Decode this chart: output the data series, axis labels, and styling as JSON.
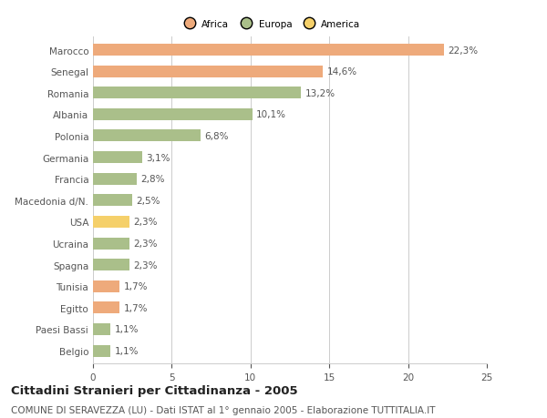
{
  "countries": [
    "Marocco",
    "Senegal",
    "Romania",
    "Albania",
    "Polonia",
    "Germania",
    "Francia",
    "Macedonia d/N.",
    "USA",
    "Ucraina",
    "Spagna",
    "Tunisia",
    "Egitto",
    "Paesi Bassi",
    "Belgio"
  ],
  "values": [
    22.3,
    14.6,
    13.2,
    10.1,
    6.8,
    3.1,
    2.8,
    2.5,
    2.3,
    2.3,
    2.3,
    1.7,
    1.7,
    1.1,
    1.1
  ],
  "labels": [
    "22,3%",
    "14,6%",
    "13,2%",
    "10,1%",
    "6,8%",
    "3,1%",
    "2,8%",
    "2,5%",
    "2,3%",
    "2,3%",
    "2,3%",
    "1,7%",
    "1,7%",
    "1,1%",
    "1,1%"
  ],
  "colors": [
    "#EEAA7B",
    "#EEAA7B",
    "#AABF8A",
    "#AABF8A",
    "#AABF8A",
    "#AABF8A",
    "#AABF8A",
    "#AABF8A",
    "#F5D06A",
    "#AABF8A",
    "#AABF8A",
    "#EEAA7B",
    "#EEAA7B",
    "#AABF8A",
    "#AABF8A"
  ],
  "legend_labels": [
    "Africa",
    "Europa",
    "America"
  ],
  "legend_colors": [
    "#EEAA7B",
    "#AABF8A",
    "#F5D06A"
  ],
  "title": "Cittadini Stranieri per Cittadinanza - 2005",
  "subtitle": "COMUNE DI SERAVEZZA (LU) - Dati ISTAT al 1° gennaio 2005 - Elaborazione TUTTITALIA.IT",
  "xlim": [
    0,
    25
  ],
  "xticks": [
    0,
    5,
    10,
    15,
    20,
    25
  ],
  "background_color": "#ffffff",
  "bar_height": 0.55,
  "grid_color": "#cccccc",
  "text_color": "#555555",
  "label_fontsize": 7.5,
  "tick_fontsize": 7.5,
  "title_fontsize": 9.5,
  "subtitle_fontsize": 7.5
}
